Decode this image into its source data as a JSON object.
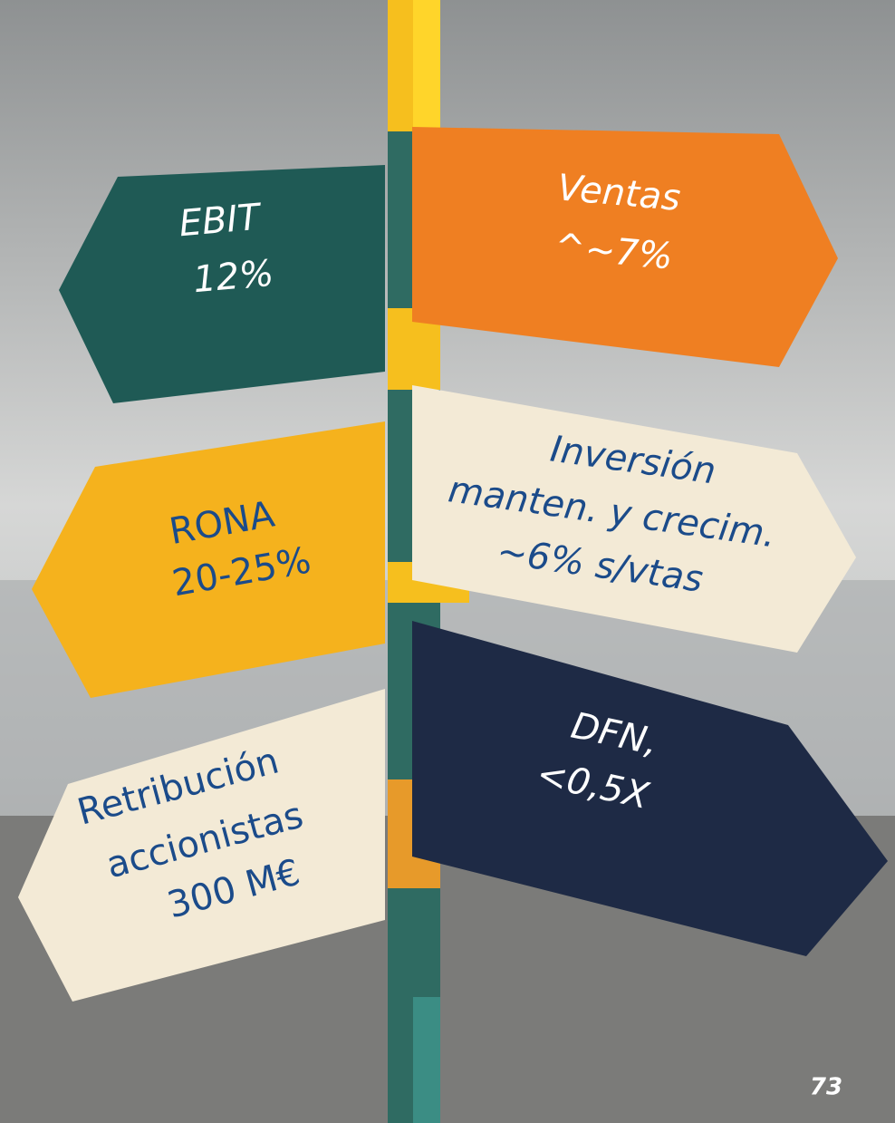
{
  "signs": [
    {
      "lines": [
        "EBIT",
        "12%"
      ]
    },
    {
      "lines": [
        "Ventas",
        "^~7%"
      ]
    },
    {
      "lines": [
        "RONA",
        "20-25%"
      ]
    },
    {
      "lines": [
        "Inversión",
        "manten. y crecim.",
        "~6% s/vtas"
      ]
    },
    {
      "lines": [
        "Retribución",
        "accionistas",
        "300 M€"
      ]
    },
    {
      "lines": [
        "DFN,",
        "<0,5X"
      ]
    }
  ],
  "page_number": "73"
}
